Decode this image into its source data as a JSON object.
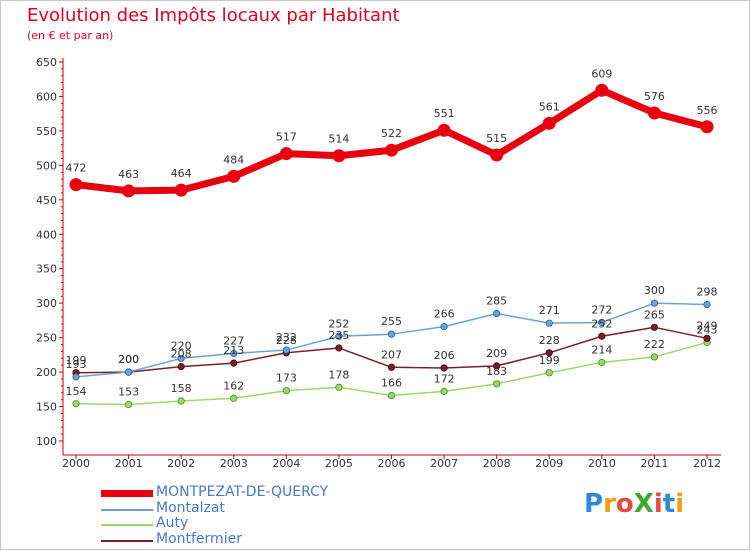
{
  "header": {
    "title": "Evolution des Impôts locaux par Habitant",
    "subtitle": "(en € et par an)"
  },
  "logo": {
    "text": "ProXiti",
    "letters": [
      "P",
      "r",
      "o",
      "X",
      "i",
      "t",
      "i"
    ],
    "colors": [
      "#2e8bd6",
      "#f39c12",
      "#e74c3c",
      "#3cab2e",
      "#e74c3c",
      "#2e8bd6",
      "#f39c12"
    ]
  },
  "chart_data": {
    "type": "line",
    "title": "Evolution des Impôts locaux par Habitant",
    "subtitle": "(en € et par an)",
    "xlabel": "",
    "ylabel": "",
    "x": [
      "2000",
      "2001",
      "2002",
      "2003",
      "2004",
      "2005",
      "2006",
      "2007",
      "2008",
      "2009",
      "2010",
      "2011",
      "2012"
    ],
    "ylim": [
      100,
      650
    ],
    "yticks": [
      100,
      150,
      200,
      250,
      300,
      350,
      400,
      450,
      500,
      550,
      600,
      650
    ],
    "grid": false,
    "legend_position": "bottom-left",
    "series": [
      {
        "name": "MONTPEZAT-DE-QUERCY",
        "color": "#e8000f",
        "values": [
          472,
          463,
          464,
          484,
          517,
          514,
          522,
          551,
          515,
          561,
          609,
          576,
          556
        ],
        "labels": [
          "472",
          "463",
          "464",
          "484",
          "517",
          "514",
          "522",
          "551",
          "515",
          "561",
          "609",
          "576",
          "556"
        ]
      },
      {
        "name": "Montalzat",
        "color": "#6aa3d5",
        "values": [
          193,
          200,
          220,
          227,
          232,
          252,
          255,
          266,
          285,
          271,
          272,
          300,
          298
        ],
        "labels": [
          "193",
          "200",
          "220",
          "227",
          "232",
          "252",
          "255",
          "266",
          "285",
          "271",
          "272",
          "300",
          "298"
        ]
      },
      {
        "name": "Auty",
        "color": "#9ad86a",
        "values": [
          154,
          153,
          158,
          162,
          173,
          178,
          166,
          172,
          183,
          199,
          214,
          222,
          243
        ],
        "labels": [
          "154",
          "153",
          "158",
          "162",
          "173",
          "178",
          "166",
          "172",
          "183",
          "199",
          "214",
          "222",
          "243"
        ]
      },
      {
        "name": "Montfermier",
        "color": "#7a1f2a",
        "values": [
          199,
          200,
          208,
          213,
          228,
          235,
          207,
          206,
          209,
          228,
          252,
          265,
          249
        ],
        "labels": [
          "199",
          "200",
          "208",
          "213",
          "228",
          "235",
          "207",
          "206",
          "209",
          "228",
          "252",
          "265",
          "249"
        ]
      }
    ]
  }
}
